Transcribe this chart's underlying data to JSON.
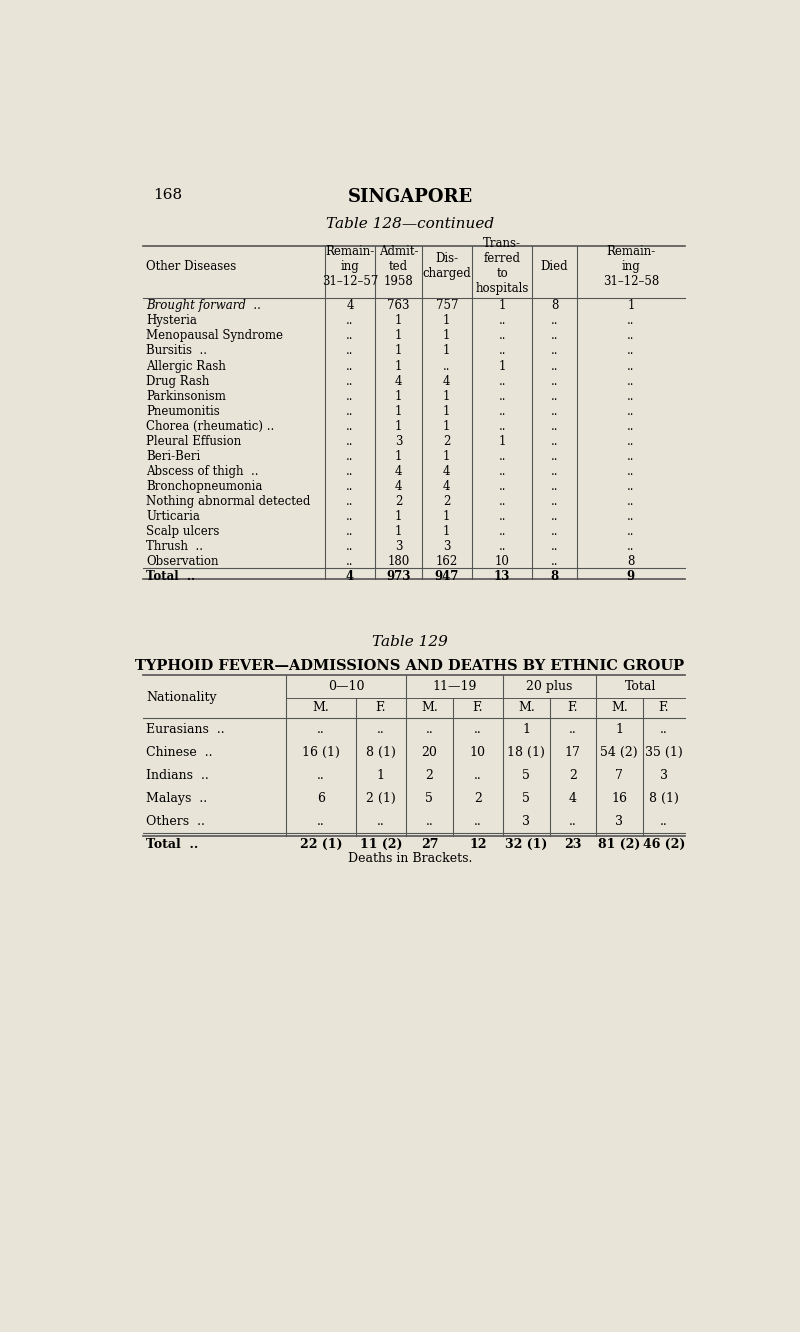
{
  "page_number": "168",
  "page_header": "SINGAPORE",
  "bg_color": "#e8e4d8",
  "table128": {
    "title": "Table 128—continued",
    "col_headers": [
      "Other Diseases",
      "Remain-\ning\n31–12–57",
      "Admit-\nted\n1958",
      "Dis-\ncharged",
      "Trans-\nferred\nto\nhospitals",
      "Died",
      "Remain-\ning\n31–12–58"
    ],
    "rows": [
      {
        "label": "Brought forward  ..",
        "italic": true,
        "vals": [
          "4",
          "763",
          "757",
          "1",
          "8",
          "1"
        ]
      },
      {
        "label": "Hysteria",
        "italic": false,
        "vals": [
          "..",
          "1",
          "1",
          "..",
          "..",
          ".."
        ]
      },
      {
        "label": "Menopausal Syndrome",
        "italic": false,
        "vals": [
          "..",
          "1",
          "1",
          "..",
          "..",
          ".."
        ]
      },
      {
        "label": "Bursitis  ..",
        "italic": false,
        "vals": [
          "..",
          "1",
          "1",
          "..",
          "..",
          ".."
        ]
      },
      {
        "label": "Allergic Rash",
        "italic": false,
        "vals": [
          "..",
          "1",
          "..",
          "1",
          "..",
          ".."
        ]
      },
      {
        "label": "Drug Rash",
        "italic": false,
        "vals": [
          "..",
          "4",
          "4",
          "..",
          "..",
          ".."
        ]
      },
      {
        "label": "Parkinsonism",
        "italic": false,
        "vals": [
          "..",
          "1",
          "1",
          "..",
          "..",
          ".."
        ]
      },
      {
        "label": "Pneumonitis",
        "italic": false,
        "vals": [
          "..",
          "1",
          "1",
          "..",
          "..",
          ".."
        ]
      },
      {
        "label": "Chorea (rheumatic) ..",
        "italic": false,
        "vals": [
          "..",
          "1",
          "1",
          "..",
          "..",
          ".."
        ]
      },
      {
        "label": "Pleural Effusion",
        "italic": false,
        "vals": [
          "..",
          "3",
          "2",
          "1",
          "..",
          ".."
        ]
      },
      {
        "label": "Beri-Beri",
        "italic": false,
        "vals": [
          "..",
          "1",
          "1",
          "..",
          "..",
          ".."
        ]
      },
      {
        "label": "Abscess of thigh  ..",
        "italic": false,
        "vals": [
          "..",
          "4",
          "4",
          "..",
          "..",
          ".."
        ]
      },
      {
        "label": "Bronchopneumonia",
        "italic": false,
        "vals": [
          "..",
          "4",
          "4",
          "..",
          "..",
          ".."
        ]
      },
      {
        "label": "Nothing abnormal detected",
        "italic": false,
        "vals": [
          "..",
          "2",
          "2",
          "..",
          "..",
          ".."
        ]
      },
      {
        "label": "Urticaria",
        "italic": false,
        "vals": [
          "..",
          "1",
          "1",
          "..",
          "..",
          ".."
        ]
      },
      {
        "label": "Scalp ulcers",
        "italic": false,
        "vals": [
          "..",
          "1",
          "1",
          "..",
          "..",
          ".."
        ]
      },
      {
        "label": "Thrush  ..",
        "italic": false,
        "vals": [
          "..",
          "3",
          "3",
          "..",
          "..",
          ".."
        ]
      },
      {
        "label": "Observation",
        "italic": false,
        "vals": [
          "..",
          "180",
          "162",
          "10",
          "..",
          "8"
        ]
      },
      {
        "label": "Total  ..",
        "italic": false,
        "is_total": true,
        "vals": [
          "4",
          "973",
          "947",
          "13",
          "8",
          "9"
        ]
      }
    ]
  },
  "table129": {
    "title": "Table 129",
    "subtitle": "TYPHOID FEVER—ADMISSIONS AND DEATHS BY ETHNIC GROUP",
    "col_groups": [
      "0—10",
      "11—19",
      "20 plus",
      "Total"
    ],
    "sub_cols": [
      "M.",
      "F."
    ],
    "row_header": "Nationality",
    "rows": [
      {
        "label": "Eurasians  ..",
        "vals": [
          "..",
          "..",
          "..",
          "..",
          "1",
          "..",
          "1",
          ".."
        ]
      },
      {
        "label": "Chinese  ..",
        "vals": [
          "16 (1)",
          "8 (1)",
          "20",
          "10",
          "18 (1)",
          "17",
          "54 (2)",
          "35 (1)"
        ]
      },
      {
        "label": "Indians  ..",
        "vals": [
          "..",
          "1",
          "2",
          "..",
          "5",
          "2",
          "7",
          "3"
        ]
      },
      {
        "label": "Malays  ..",
        "vals": [
          "6",
          "2 (1)",
          "5",
          "2",
          "5",
          "4",
          "16",
          "8 (1)"
        ]
      },
      {
        "label": "Others  ..",
        "vals": [
          "..",
          "..",
          "..",
          "..",
          "3",
          "..",
          "3",
          ".."
        ]
      },
      {
        "label": "Total  ..",
        "is_total": true,
        "vals": [
          "22 (1)",
          "11 (2)",
          "27",
          "12",
          "32 (1)",
          "23",
          "81 (2)",
          "46 (2)"
        ]
      }
    ],
    "footnote": "Deaths in Brackets."
  }
}
